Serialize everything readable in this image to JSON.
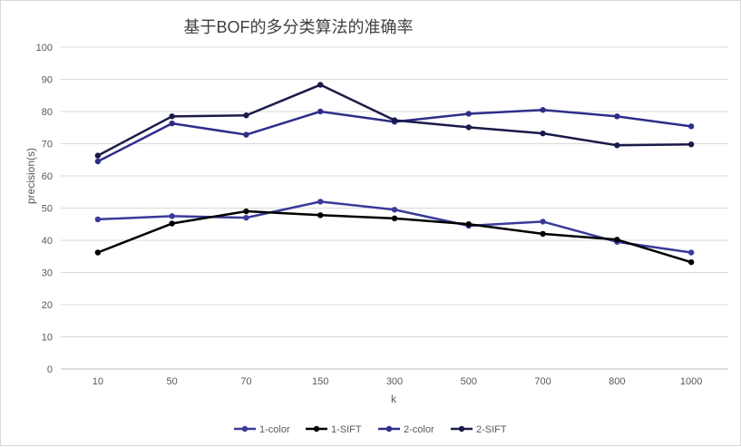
{
  "chart_data": {
    "type": "line",
    "title": "基于BOF的多分类算法的准确率",
    "xlabel": "k",
    "ylabel": "precision(s)",
    "categories": [
      "10",
      "50",
      "70",
      "150",
      "300",
      "500",
      "700",
      "800",
      "1000"
    ],
    "ylim": [
      0,
      100
    ],
    "yticks": [
      0,
      10,
      20,
      30,
      40,
      50,
      60,
      70,
      80,
      90,
      100
    ],
    "grid": true,
    "legend_position": "bottom",
    "series": [
      {
        "name": "1-color",
        "color": "#3a3a9a",
        "values": [
          46.5,
          47.5,
          47.0,
          52.0,
          49.5,
          44.5,
          45.8,
          39.5,
          36.2
        ]
      },
      {
        "name": "1-SIFT",
        "color": "#000000",
        "values": [
          36.2,
          45.2,
          49.0,
          47.8,
          46.8,
          45.0,
          42.0,
          40.2,
          33.2
        ]
      },
      {
        "name": "2-color",
        "color": "#2e2e8a",
        "values": [
          64.5,
          76.3,
          72.8,
          80.0,
          76.8,
          79.3,
          80.5,
          78.5,
          75.4
        ]
      },
      {
        "name": "2-SIFT",
        "color": "#1a1a4a",
        "values": [
          66.3,
          78.5,
          78.8,
          88.3,
          77.3,
          75.1,
          73.2,
          69.5,
          69.8
        ]
      }
    ]
  }
}
